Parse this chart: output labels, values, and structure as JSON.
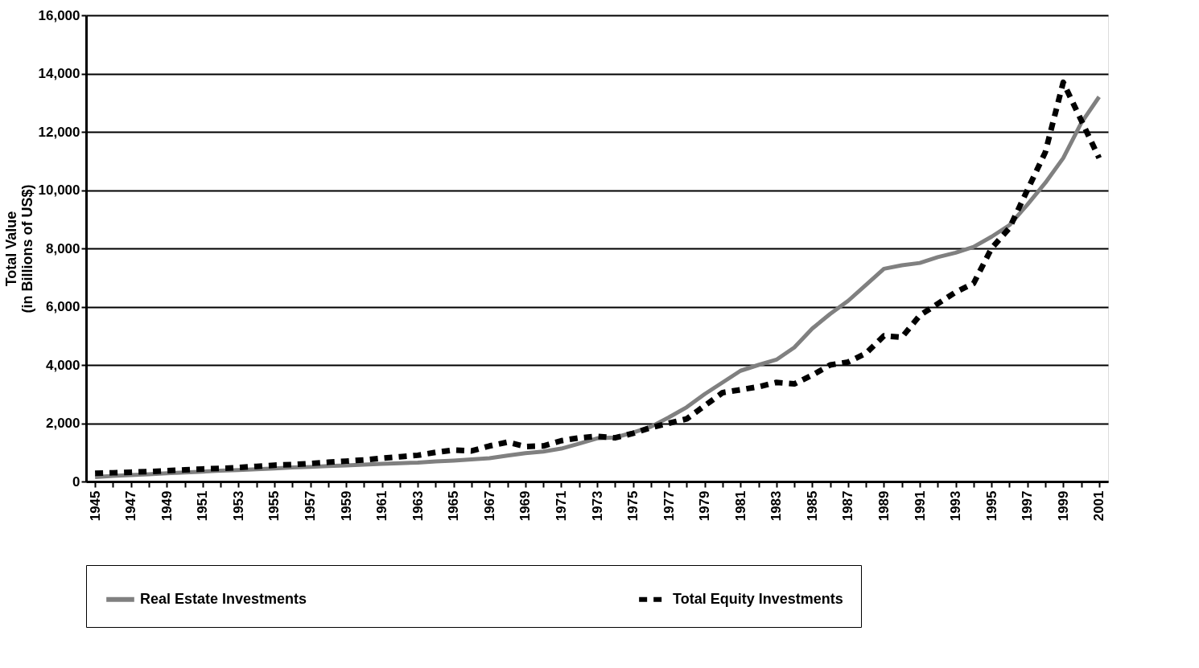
{
  "chart_data": {
    "type": "line",
    "ylabel": "Total Value\n(in Billions of US$)",
    "categories": [
      "1945",
      null,
      "1947",
      null,
      "1949",
      null,
      "1951",
      null,
      "1953",
      null,
      "1955",
      null,
      "1957",
      null,
      "1959",
      null,
      "1961",
      null,
      "1963",
      null,
      "1965",
      null,
      "1967",
      null,
      "1969",
      null,
      "1971",
      null,
      "1973",
      null,
      "1975",
      null,
      "1977",
      null,
      "1979",
      null,
      "1981",
      null,
      "1983",
      null,
      "1985",
      null,
      "1987",
      null,
      "1989",
      null,
      "1991",
      null,
      "1993",
      null,
      "1995",
      null,
      "1997",
      null,
      "1999",
      null,
      "2001"
    ],
    "series": [
      {
        "name": "Real Estate Investments",
        "color": "#808080",
        "line_style": "solid",
        "values": [
          150,
          190,
          220,
          250,
          280,
          310,
          340,
          370,
          390,
          420,
          450,
          480,
          500,
          530,
          550,
          580,
          610,
          630,
          650,
          690,
          720,
          760,
          800,
          890,
          970,
          1030,
          1130,
          1300,
          1480,
          1510,
          1680,
          1880,
          2200,
          2550,
          3000,
          3400,
          3800,
          4000,
          4180,
          4600,
          5250,
          5750,
          6200,
          6750,
          7300,
          7420,
          7500,
          7700,
          7850,
          8050,
          8400,
          8800,
          9500,
          10250,
          11100,
          12300,
          13200
        ]
      },
      {
        "name": "Total Equity Investments",
        "color": "#000000",
        "line_style": "dashed",
        "values": [
          280,
          300,
          320,
          340,
          370,
          400,
          430,
          450,
          480,
          520,
          560,
          580,
          620,
          660,
          700,
          740,
          800,
          850,
          900,
          1000,
          1080,
          1050,
          1220,
          1350,
          1200,
          1220,
          1400,
          1500,
          1550,
          1500,
          1650,
          1850,
          2000,
          2150,
          2600,
          3050,
          3150,
          3250,
          3400,
          3350,
          3650,
          4000,
          4100,
          4400,
          5000,
          4950,
          5700,
          6100,
          6500,
          6800,
          8000,
          8700,
          10000,
          11300,
          13700,
          12400,
          11100
        ]
      }
    ],
    "ylim": [
      0,
      16000
    ],
    "yticks": [
      0,
      {
        "value": 2000,
        "label": "2,000"
      },
      {
        "value": 4000,
        "label": "4,000"
      },
      {
        "value": 6000,
        "label": "6,000"
      },
      {
        "value": 8000,
        "label": "8,000"
      },
      {
        "value": 10000,
        "label": "10,000"
      },
      {
        "value": 12000,
        "label": "12,000"
      },
      {
        "value": 14000,
        "label": "14,000"
      },
      {
        "value": 16000,
        "label": "16,000"
      }
    ],
    "grid": "y",
    "legend": "bottom"
  }
}
